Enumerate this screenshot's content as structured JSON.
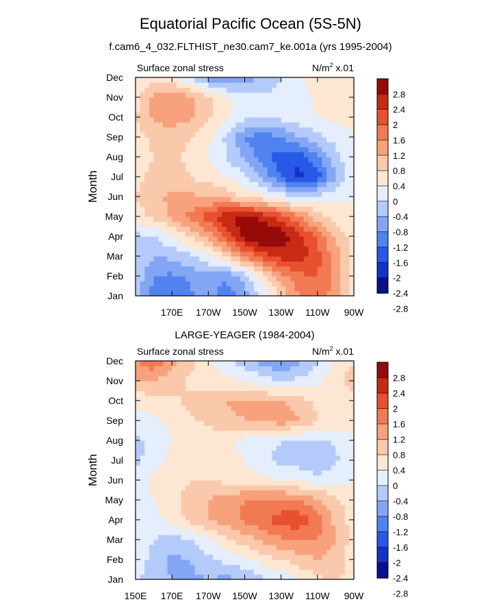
{
  "figure": {
    "title": "Equatorial Pacific Ocean (5S-5N)",
    "subtitle": "f.cam6_4_032.FLTHIST_ne30.cam7_ke.001a (yrs 1995-2004)"
  },
  "colors": {
    "palette": [
      "#08108c",
      "#1432c8",
      "#2858e6",
      "#5082f0",
      "#82a6f4",
      "#b4cafa",
      "#e4eefc",
      "#fde6d2",
      "#fac8aa",
      "#f7a27c",
      "#f27a52",
      "#e85030",
      "#c82a14",
      "#960a0a"
    ]
  },
  "chart_data": [
    {
      "type": "heatmap",
      "name": "model",
      "title": "",
      "left_label": "Surface zonal stress",
      "right_label": "N/m",
      "right_label_sup": "2",
      "right_label_tail": " x.01",
      "ylabel": "Month",
      "xlabel": "",
      "x_tick_labels": [
        "170E",
        "170W",
        "150W",
        "130W",
        "110W",
        "90W"
      ],
      "x_tick_values": [
        170,
        190,
        210,
        230,
        250,
        270
      ],
      "xlim": [
        150,
        270
      ],
      "y_tick_labels": [
        "Jan",
        "Feb",
        "Mar",
        "Apr",
        "May",
        "Jun",
        "Jul",
        "Aug",
        "Sep",
        "Oct",
        "Nov",
        "Dec"
      ],
      "ylim": [
        1,
        12
      ],
      "colorbar": {
        "levels": [
          "2.8",
          "2.4",
          "2",
          "1.6",
          "1.2",
          "0.8",
          "0.4",
          "0",
          "-0.4",
          "-0.8",
          "-1.2",
          "-1.6",
          "-2",
          "-2.4",
          "-2.8"
        ]
      },
      "x": [
        150,
        160,
        170,
        180,
        190,
        200,
        210,
        220,
        230,
        240,
        250,
        260,
        270
      ],
      "months": [
        1,
        2,
        3,
        4,
        5,
        6,
        7,
        8,
        9,
        10,
        11,
        12
      ],
      "values": [
        [
          -0.6,
          -1.4,
          -1.6,
          -1.3,
          -1.0,
          -1.5,
          -1.0,
          -0.3,
          0.5,
          1.2,
          1.4,
          1.0,
          0.3
        ],
        [
          -0.5,
          -1.2,
          -1.3,
          -1.1,
          -0.9,
          -1.1,
          -0.6,
          0.2,
          1.0,
          1.5,
          1.6,
          1.1,
          0.3
        ],
        [
          -0.4,
          -0.8,
          -0.7,
          -0.5,
          -0.1,
          0.4,
          1.2,
          1.8,
          2.2,
          2.2,
          1.8,
          1.0,
          0.3
        ],
        [
          -0.5,
          -0.5,
          0.0,
          0.4,
          1.0,
          1.8,
          2.6,
          2.9,
          2.7,
          2.2,
          1.5,
          0.7,
          0.2
        ],
        [
          0.2,
          0.5,
          0.9,
          1.3,
          1.8,
          2.4,
          2.5,
          2.3,
          1.8,
          1.2,
          0.6,
          0.2,
          0.0
        ],
        [
          0.4,
          0.7,
          0.9,
          0.9,
          0.8,
          0.6,
          0.4,
          0.1,
          -0.2,
          -0.3,
          -0.3,
          -0.1,
          0.0
        ],
        [
          0.3,
          0.5,
          0.6,
          0.4,
          0.2,
          0.0,
          -0.3,
          -0.9,
          -1.6,
          -2.2,
          -1.8,
          -0.8,
          -0.1
        ],
        [
          0.2,
          0.4,
          0.5,
          0.3,
          0.0,
          -0.4,
          -0.9,
          -1.4,
          -1.8,
          -1.8,
          -1.3,
          -0.6,
          0.0
        ],
        [
          0.2,
          0.5,
          0.6,
          0.4,
          0.1,
          -0.5,
          -1.2,
          -1.5,
          -1.2,
          -0.8,
          -0.5,
          -0.2,
          0.0
        ],
        [
          0.4,
          0.9,
          1.0,
          0.9,
          0.5,
          0.1,
          -0.3,
          -0.4,
          -0.3,
          -0.2,
          0.0,
          0.1,
          0.1
        ],
        [
          0.2,
          0.9,
          1.1,
          0.9,
          0.5,
          0.1,
          -0.2,
          -0.3,
          -0.3,
          -0.2,
          0.1,
          0.3,
          0.2
        ],
        [
          0.1,
          0.2,
          0.1,
          -0.4,
          -1.0,
          -1.2,
          -1.0,
          -0.8,
          -0.4,
          -0.1,
          0.3,
          0.4,
          0.2
        ]
      ]
    },
    {
      "type": "heatmap",
      "name": "obs",
      "title": "LARGE-YEAGER (1984-2004)",
      "left_label": "Surface zonal stress",
      "right_label": "N/m",
      "right_label_sup": "2",
      "right_label_tail": " x.01",
      "ylabel": "Month",
      "xlabel": "",
      "x_tick_labels": [
        "150E",
        "170E",
        "170W",
        "150W",
        "130W",
        "110W",
        "90W"
      ],
      "x_tick_values": [
        150,
        170,
        190,
        210,
        230,
        250,
        270
      ],
      "xlim": [
        150,
        270
      ],
      "y_tick_labels": [
        "Jan",
        "Feb",
        "Mar",
        "Apr",
        "May",
        "Jun",
        "Jul",
        "Aug",
        "Sep",
        "Oct",
        "Nov",
        "Dec"
      ],
      "ylim": [
        1,
        12
      ],
      "colorbar": {
        "levels": [
          "2.8",
          "2.4",
          "2",
          "1.6",
          "1.2",
          "0.8",
          "0.4",
          "0",
          "-0.4",
          "-0.8",
          "-1.2",
          "-1.6",
          "-2",
          "-2.4",
          "-2.8"
        ]
      },
      "x": [
        150,
        160,
        170,
        180,
        190,
        200,
        210,
        220,
        230,
        240,
        250,
        260,
        270
      ],
      "months": [
        1,
        2,
        3,
        4,
        5,
        6,
        7,
        8,
        9,
        10,
        11,
        12
      ],
      "values": [
        [
          -0.3,
          -0.7,
          -0.8,
          -0.9,
          -0.8,
          -0.9,
          -0.8,
          -0.5,
          -0.3,
          0.0,
          0.3,
          0.5,
          0.2
        ],
        [
          -0.2,
          -0.5,
          -0.9,
          -0.8,
          -0.5,
          -0.3,
          -0.1,
          0.2,
          0.4,
          0.6,
          0.8,
          0.6,
          0.2
        ],
        [
          -0.2,
          -0.4,
          -0.6,
          -0.4,
          -0.1,
          0.3,
          0.6,
          0.9,
          1.1,
          1.2,
          1.2,
          0.8,
          0.2
        ],
        [
          -0.3,
          -0.2,
          0.2,
          0.5,
          0.8,
          1.0,
          1.3,
          1.5,
          1.8,
          1.9,
          1.4,
          0.7,
          0.2
        ],
        [
          -0.3,
          0.0,
          0.3,
          0.5,
          0.8,
          1.0,
          1.2,
          1.3,
          1.3,
          1.2,
          0.9,
          0.5,
          0.1
        ],
        [
          -0.2,
          0.1,
          0.3,
          0.4,
          0.4,
          0.3,
          0.2,
          0.1,
          0.0,
          -0.1,
          -0.2,
          -0.1,
          0.0
        ],
        [
          -0.5,
          -0.2,
          0.1,
          0.2,
          0.2,
          0.1,
          0.0,
          -0.3,
          -0.5,
          -0.6,
          -0.8,
          -0.5,
          0.0
        ],
        [
          -0.5,
          -0.3,
          0.0,
          0.2,
          0.2,
          0.1,
          -0.1,
          -0.3,
          -0.4,
          -0.4,
          -0.5,
          -0.3,
          0.0
        ],
        [
          -0.2,
          -0.1,
          0.1,
          0.3,
          0.5,
          0.7,
          0.8,
          0.9,
          1.0,
          0.8,
          0.4,
          0.2,
          0.1
        ],
        [
          0.1,
          0.2,
          0.3,
          0.5,
          0.7,
          0.8,
          0.9,
          0.8,
          0.8,
          0.6,
          0.3,
          0.2,
          0.2
        ],
        [
          0.8,
          0.8,
          0.6,
          0.3,
          0.2,
          0.1,
          0.0,
          -0.2,
          -0.4,
          -0.3,
          -0.1,
          0.3,
          0.6
        ],
        [
          1.2,
          1.5,
          0.9,
          0.6,
          0.1,
          -0.3,
          -0.6,
          -1.0,
          -1.2,
          -0.9,
          -0.5,
          0.1,
          0.4
        ]
      ]
    }
  ]
}
